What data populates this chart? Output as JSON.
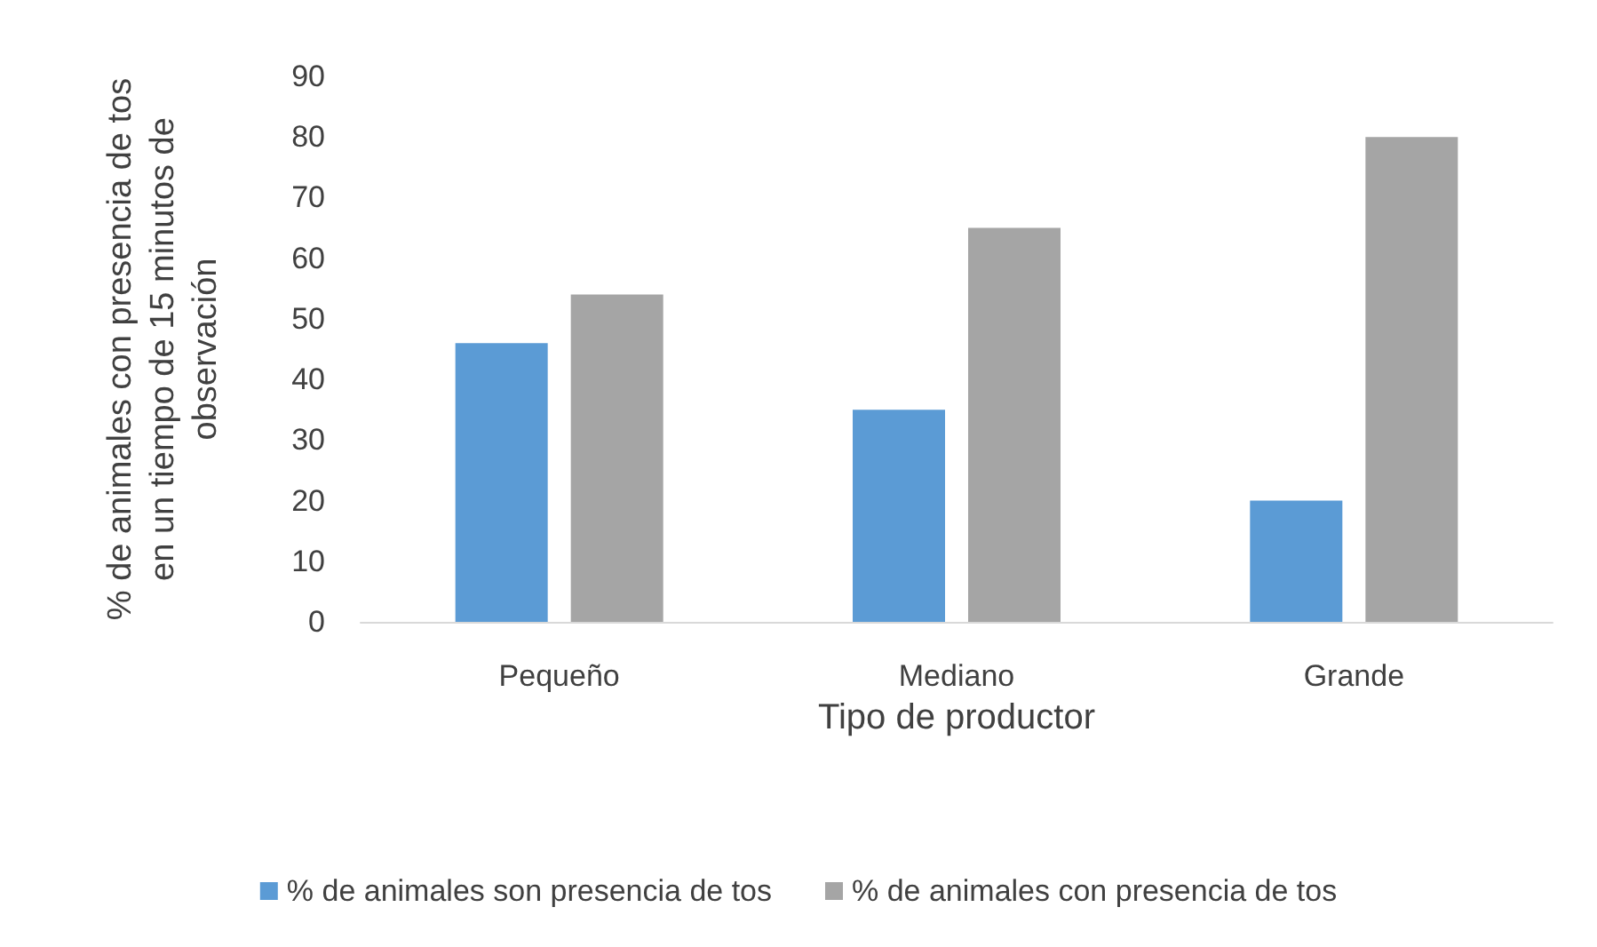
{
  "chart_data": {
    "type": "bar",
    "xlabel": "Tipo de productor",
    "ylabel": "% de animales con presencia de tos\nen un tiempo de 15 minutos de\nobservación",
    "categories": [
      "Pequeño",
      "Mediano",
      "Grande"
    ],
    "series": [
      {
        "name": "% de animales son presencia de tos",
        "color": "#5b9bd5",
        "values": [
          46,
          35,
          20
        ]
      },
      {
        "name": "% de animales con presencia de tos",
        "color": "#a5a5a5",
        "values": [
          54,
          65,
          80
        ]
      }
    ],
    "ylim": [
      0,
      90
    ],
    "yticks": [
      0,
      10,
      20,
      30,
      40,
      50,
      60,
      70,
      80,
      90
    ],
    "grid": false,
    "legend": "bottom"
  }
}
